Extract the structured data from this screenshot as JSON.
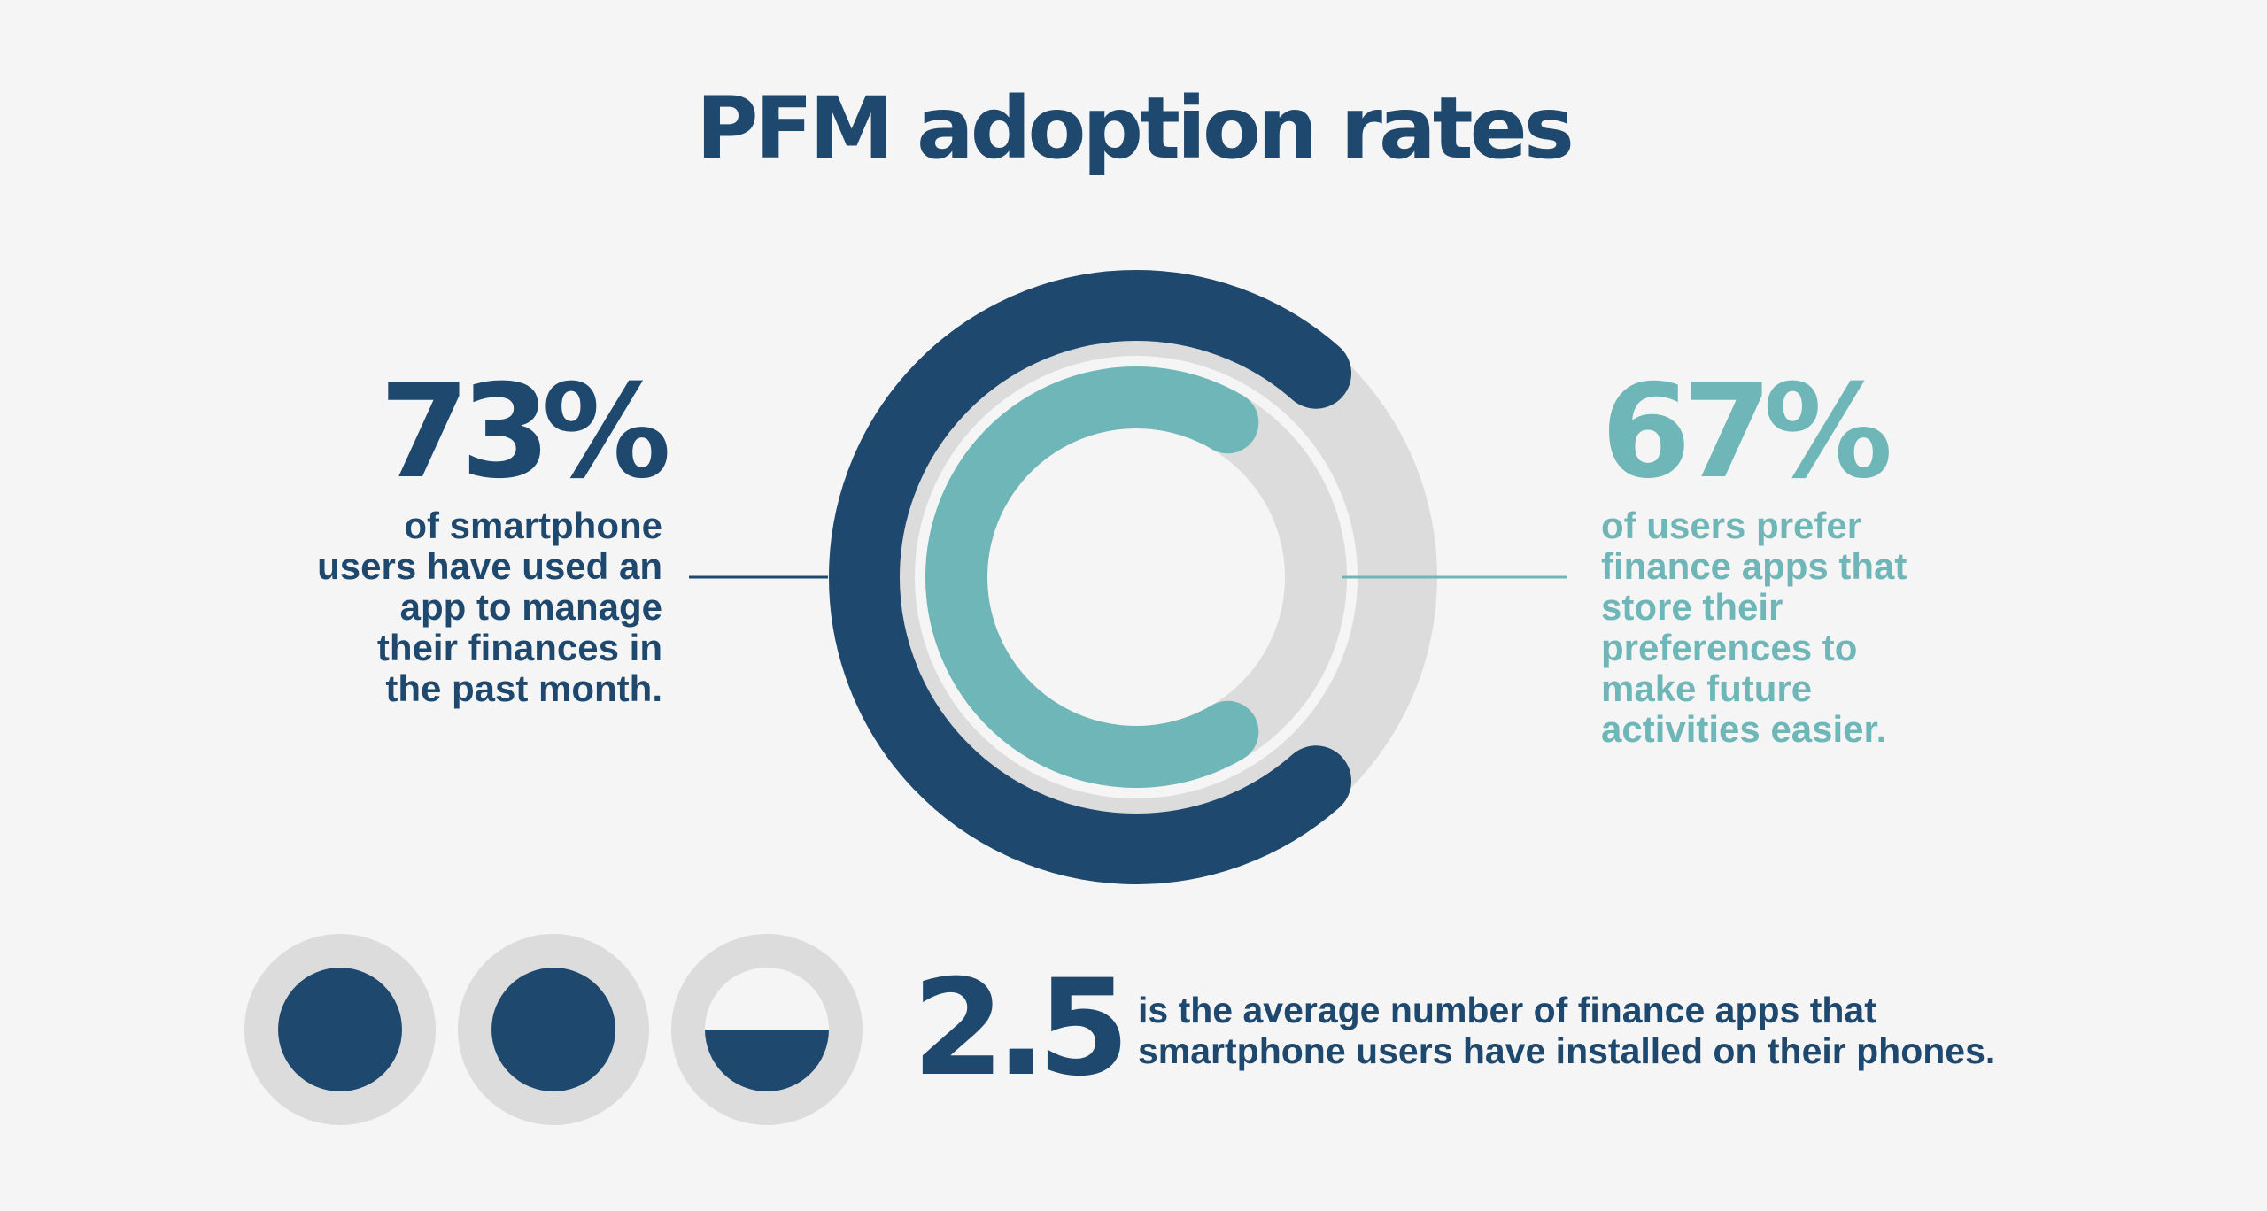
{
  "title": "PFM adoption rates",
  "colors": {
    "background": "#f5f5f5",
    "navy": "#1e486d",
    "teal": "#6eb6b7",
    "track": "#dcdcdc",
    "white": "#f5f5f5"
  },
  "chart_data": [
    {
      "type": "pie",
      "title": "PFM adoption rates",
      "series": [
        {
          "value": 73,
          "unit": "%",
          "label": "73%",
          "description": [
            "of smartphone",
            "users have used an",
            "app to manage",
            "their finances in",
            "the past month."
          ]
        },
        {
          "value": 67,
          "unit": "%",
          "label": "67%",
          "description": [
            "of users prefer",
            "finance apps that",
            "store their",
            "preferences to",
            "make future",
            "activities easier."
          ]
        }
      ]
    },
    {
      "type": "bar",
      "value": 2.5,
      "label": "2.5",
      "icons": [
        1,
        1,
        0.5
      ],
      "description": [
        "is the average number of finance apps that",
        "smartphone users have installed on their phones."
      ]
    }
  ]
}
